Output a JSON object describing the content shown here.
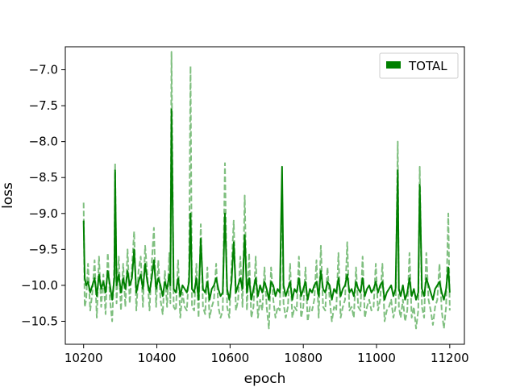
{
  "chart_data": {
    "type": "line",
    "title": "",
    "xlabel": "epoch",
    "ylabel": "loss",
    "xlim": [
      10150,
      11240
    ],
    "ylim": [
      -10.82,
      -6.68
    ],
    "xticks": [
      10200,
      10400,
      10600,
      10800,
      11000,
      11200
    ],
    "yticks": [
      -10.5,
      -10.0,
      -9.5,
      -9.0,
      -8.5,
      -8.0,
      -7.5,
      -7.0
    ],
    "ytick_labels": [
      "−10.5",
      "−10.0",
      "−9.5",
      "−9.0",
      "−8.5",
      "−8.0",
      "−7.5",
      "−7.0"
    ],
    "grid": false,
    "legend": {
      "position": "top-right",
      "entries": [
        "TOTAL"
      ]
    },
    "colors": {
      "solid": "#008000",
      "dashed": "#7fbf7f"
    },
    "series": [
      {
        "name": "TOTAL",
        "style": "solid",
        "x": [
          10200,
          10203,
          10207,
          10212,
          10218,
          10224,
          10230,
          10236,
          10242,
          10248,
          10254,
          10260,
          10266,
          10272,
          10278,
          10284,
          10286,
          10290,
          10296,
          10302,
          10308,
          10314,
          10320,
          10326,
          10332,
          10338,
          10344,
          10350,
          10356,
          10362,
          10368,
          10374,
          10380,
          10386,
          10392,
          10398,
          10404,
          10410,
          10416,
          10422,
          10428,
          10434,
          10437,
          10440,
          10446,
          10452,
          10458,
          10464,
          10470,
          10476,
          10482,
          10488,
          10492,
          10496,
          10502,
          10508,
          10514,
          10520,
          10526,
          10532,
          10538,
          10544,
          10550,
          10556,
          10562,
          10568,
          10574,
          10580,
          10586,
          10592,
          10598,
          10604,
          10610,
          10616,
          10622,
          10628,
          10634,
          10640,
          10646,
          10652,
          10658,
          10664,
          10670,
          10676,
          10682,
          10688,
          10694,
          10700,
          10706,
          10712,
          10718,
          10724,
          10730,
          10736,
          10742,
          10746,
          10752,
          10758,
          10764,
          10770,
          10776,
          10782,
          10788,
          10794,
          10800,
          10806,
          10812,
          10818,
          10824,
          10830,
          10836,
          10842,
          10848,
          10854,
          10860,
          10866,
          10872,
          10878,
          10884,
          10890,
          10896,
          10902,
          10908,
          10914,
          10920,
          10926,
          10932,
          10938,
          10944,
          10950,
          10956,
          10962,
          10968,
          10974,
          10980,
          10986,
          10992,
          10998,
          11004,
          11010,
          11016,
          11022,
          11028,
          11034,
          11040,
          11046,
          11052,
          11058,
          11061,
          11066,
          11072,
          11078,
          11084,
          11090,
          11096,
          11102,
          11108,
          11114,
          11118,
          11124,
          11130,
          11136,
          11142,
          11148,
          11154,
          11160,
          11166,
          11172,
          11178,
          11184,
          11190,
          11196,
          11200
        ],
        "y": [
          -9.1,
          -9.9,
          -10.0,
          -9.95,
          -10.1,
          -10.0,
          -9.9,
          -10.15,
          -9.85,
          -10.05,
          -9.95,
          -10.1,
          -9.8,
          -10.0,
          -10.2,
          -9.9,
          -8.4,
          -10.0,
          -9.85,
          -10.1,
          -9.9,
          -10.05,
          -9.8,
          -10.0,
          -9.9,
          -9.5,
          -10.1,
          -9.95,
          -9.85,
          -10.05,
          -9.7,
          -9.95,
          -10.1,
          -9.9,
          -9.65,
          -10.05,
          -9.9,
          -10.0,
          -10.15,
          -9.95,
          -10.05,
          -9.85,
          -10.0,
          -7.55,
          -10.05,
          -10.1,
          -9.9,
          -10.15,
          -10.0,
          -10.05,
          -10.1,
          -9.95,
          -9.0,
          -10.05,
          -10.1,
          -9.9,
          -10.2,
          -9.35,
          -10.05,
          -10.1,
          -9.95,
          -10.2,
          -10.05,
          -10.0,
          -9.9,
          -10.05,
          -10.15,
          -10.1,
          -9.0,
          -10.05,
          -10.2,
          -9.95,
          -9.4,
          -10.1,
          -10.0,
          -9.9,
          -10.05,
          -9.3,
          -10.1,
          -9.9,
          -10.2,
          -10.05,
          -9.9,
          -10.15,
          -10.0,
          -10.1,
          -9.95,
          -10.05,
          -10.2,
          -9.95,
          -10.0,
          -10.15,
          -10.05,
          -10.1,
          -8.35,
          -10.0,
          -10.15,
          -10.05,
          -9.95,
          -10.2,
          -10.05,
          -10.1,
          -9.9,
          -10.15,
          -10.05,
          -9.95,
          -10.2,
          -10.05,
          -10.1,
          -10.0,
          -9.95,
          -10.15,
          -9.8,
          -10.05,
          -10.1,
          -9.95,
          -10.0,
          -10.2,
          -10.05,
          -10.1,
          -9.9,
          -10.15,
          -10.05,
          -10.0,
          -9.85,
          -10.1,
          -10.05,
          -10.15,
          -9.95,
          -10.05,
          -10.1,
          -9.9,
          -10.15,
          -10.05,
          -10.0,
          -10.1,
          -10.05,
          -9.95,
          -10.1,
          -10.0,
          -9.95,
          -10.2,
          -10.1,
          -10.05,
          -10.0,
          -10.15,
          -10.05,
          -8.4,
          -10.05,
          -10.15,
          -10.0,
          -10.2,
          -10.1,
          -9.9,
          -10.15,
          -10.05,
          -10.2,
          -10.1,
          -8.6,
          -10.05,
          -10.15,
          -9.9,
          -10.0,
          -10.1,
          -10.2,
          -10.05,
          -10.0,
          -9.95,
          -10.1,
          -10.2,
          -10.05,
          -9.75,
          -10.1
        ]
      },
      {
        "name": "",
        "style": "dashed",
        "x": [
          10200,
          10203,
          10207,
          10212,
          10218,
          10224,
          10230,
          10236,
          10242,
          10248,
          10254,
          10260,
          10266,
          10272,
          10278,
          10284,
          10286,
          10290,
          10296,
          10302,
          10308,
          10314,
          10320,
          10326,
          10332,
          10338,
          10344,
          10350,
          10356,
          10362,
          10368,
          10374,
          10380,
          10386,
          10392,
          10398,
          10404,
          10410,
          10416,
          10422,
          10428,
          10434,
          10437,
          10440,
          10446,
          10452,
          10458,
          10464,
          10470,
          10476,
          10482,
          10488,
          10492,
          10496,
          10502,
          10508,
          10514,
          10520,
          10526,
          10532,
          10538,
          10544,
          10550,
          10556,
          10562,
          10568,
          10574,
          10580,
          10586,
          10592,
          10598,
          10604,
          10610,
          10616,
          10622,
          10628,
          10634,
          10640,
          10646,
          10652,
          10658,
          10664,
          10670,
          10676,
          10682,
          10688,
          10694,
          10700,
          10706,
          10712,
          10718,
          10724,
          10730,
          10736,
          10742,
          10746,
          10752,
          10758,
          10764,
          10770,
          10776,
          10782,
          10788,
          10794,
          10800,
          10806,
          10812,
          10818,
          10824,
          10830,
          10836,
          10842,
          10848,
          10854,
          10860,
          10866,
          10872,
          10878,
          10884,
          10890,
          10896,
          10902,
          10908,
          10914,
          10920,
          10926,
          10932,
          10938,
          10944,
          10950,
          10956,
          10962,
          10968,
          10974,
          10980,
          10986,
          10992,
          10998,
          11004,
          11010,
          11016,
          11022,
          11028,
          11034,
          11040,
          11046,
          11052,
          11058,
          11061,
          11066,
          11072,
          11078,
          11084,
          11090,
          11096,
          11102,
          11108,
          11114,
          11118,
          11124,
          11130,
          11136,
          11142,
          11148,
          11154,
          11160,
          11166,
          11172,
          11178,
          11184,
          11190,
          11196,
          11200
        ],
        "y": [
          -8.85,
          -10.3,
          -10.2,
          -9.7,
          -10.35,
          -10.1,
          -9.65,
          -10.45,
          -9.6,
          -10.3,
          -9.85,
          -10.4,
          -9.55,
          -10.2,
          -10.5,
          -9.7,
          -8.3,
          -10.25,
          -9.6,
          -10.35,
          -9.7,
          -10.3,
          -9.5,
          -10.25,
          -9.75,
          -9.25,
          -10.35,
          -9.8,
          -9.6,
          -10.3,
          -9.45,
          -9.85,
          -10.35,
          -9.7,
          -9.2,
          -10.3,
          -9.65,
          -10.2,
          -10.4,
          -9.8,
          -10.3,
          -9.55,
          -10.25,
          -6.75,
          -10.3,
          -10.35,
          -9.65,
          -10.45,
          -10.1,
          -10.3,
          -10.35,
          -9.8,
          -6.95,
          -10.3,
          -10.35,
          -9.7,
          -10.45,
          -9.15,
          -10.3,
          -10.4,
          -9.75,
          -10.45,
          -10.3,
          -10.2,
          -9.7,
          -10.3,
          -10.45,
          -10.35,
          -8.3,
          -10.3,
          -10.45,
          -9.75,
          -9.1,
          -10.35,
          -10.2,
          -9.6,
          -10.3,
          -8.75,
          -10.35,
          -9.55,
          -10.45,
          -10.3,
          -9.6,
          -10.45,
          -10.2,
          -10.35,
          -9.75,
          -10.3,
          -10.6,
          -9.75,
          -10.2,
          -10.45,
          -10.3,
          -10.35,
          -8.5,
          -10.25,
          -10.45,
          -10.3,
          -9.7,
          -10.45,
          -10.3,
          -10.35,
          -9.6,
          -10.45,
          -10.3,
          -9.75,
          -10.5,
          -10.3,
          -10.35,
          -10.2,
          -9.65,
          -10.45,
          -9.45,
          -10.3,
          -10.35,
          -9.75,
          -10.2,
          -10.5,
          -10.3,
          -10.35,
          -9.55,
          -10.45,
          -10.3,
          -10.2,
          -9.4,
          -10.35,
          -10.3,
          -10.45,
          -9.75,
          -10.3,
          -10.35,
          -9.6,
          -10.45,
          -10.3,
          -10.2,
          -10.35,
          -10.3,
          -9.7,
          -10.35,
          -10.2,
          -9.7,
          -10.5,
          -10.35,
          -10.3,
          -10.2,
          -10.45,
          -10.3,
          -8.0,
          -10.3,
          -10.45,
          -10.2,
          -10.5,
          -10.35,
          -9.55,
          -10.45,
          -10.3,
          -10.6,
          -10.35,
          -8.35,
          -10.3,
          -10.45,
          -9.55,
          -10.2,
          -10.35,
          -10.55,
          -10.3,
          -10.2,
          -9.7,
          -10.35,
          -10.6,
          -10.3,
          -9.0,
          -10.35
        ]
      }
    ]
  }
}
